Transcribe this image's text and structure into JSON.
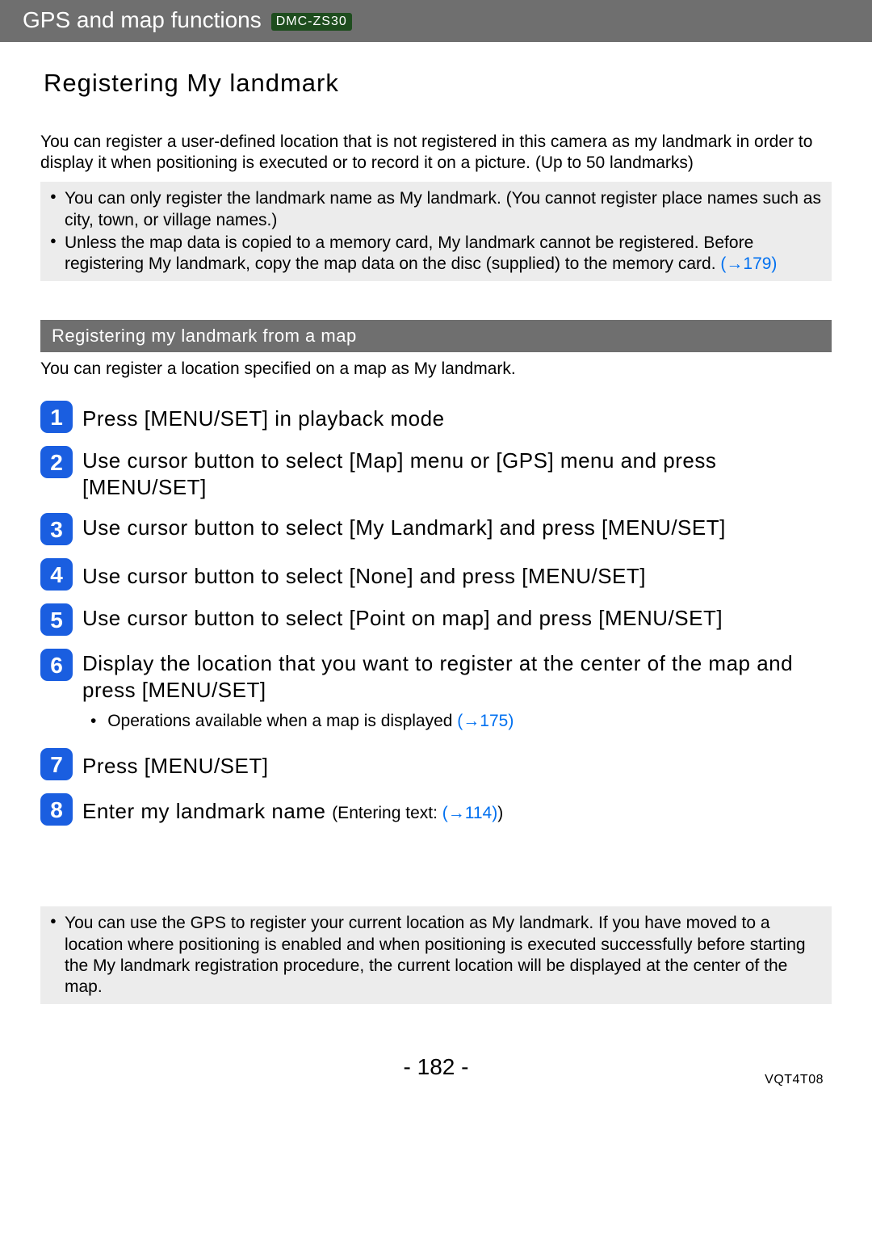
{
  "header": {
    "title": "GPS and map functions",
    "model": "DMC-ZS30"
  },
  "page_title": "Registering My landmark",
  "intro": "You can register a user-defined location that is not registered in this camera as my landmark in order to display it when positioning is executed or to record it on a picture. (Up to 50 landmarks)",
  "notes_top": {
    "items": [
      "You can only register the landmark name as My landmark. (You cannot register place names such as city, town, or village names.)",
      "Unless the map data is copied to a memory card, My landmark cannot be registered. Before registering My landmark, copy the map data on the disc (supplied) to the memory card."
    ],
    "link_text": "(→179)"
  },
  "section": {
    "title": "Registering my landmark from a map",
    "desc": "You can register a location specified on a map as My landmark."
  },
  "steps": [
    {
      "n": "1",
      "text": "Press [MENU/SET] in playback mode"
    },
    {
      "n": "2",
      "text": "Use cursor button to select [Map] menu or [GPS] menu and press [MENU/SET]"
    },
    {
      "n": "3",
      "text": "Use cursor button to select [My Landmark] and press [MENU/SET]"
    },
    {
      "n": "4",
      "text": "Use cursor button to select [None] and press [MENU/SET]"
    },
    {
      "n": "5",
      "text": "Use cursor button to select [Point on map] and press [MENU/SET]"
    },
    {
      "n": "6",
      "text": "Display the location that you want to register at the center of the map and press [MENU/SET]"
    },
    {
      "n": "7",
      "text": "Press [MENU/SET]"
    },
    {
      "n": "8",
      "text": "Enter my landmark name"
    }
  ],
  "substep6": {
    "text": "Operations available when a map is displayed",
    "link": "(→175)"
  },
  "step8_note": {
    "prefix": " (Entering text:",
    "link": "(→114)",
    "suffix": ")"
  },
  "notes_bottom": {
    "items": [
      "You can use the GPS to register your current location as My landmark. If you have moved to a location where positioning is enabled and when positioning is executed successfully before starting the My landmark registration procedure, the current location will be displayed at the center of the map."
    ]
  },
  "footer": {
    "page": "- 182 -",
    "doc_id": "VQT4T08"
  },
  "colors": {
    "header_bg": "#6f6f6f",
    "badge_bg": "#1e4d1e",
    "note_bg": "#ececec",
    "step_bg": "#1a5ee0",
    "link": "#0070f0"
  }
}
